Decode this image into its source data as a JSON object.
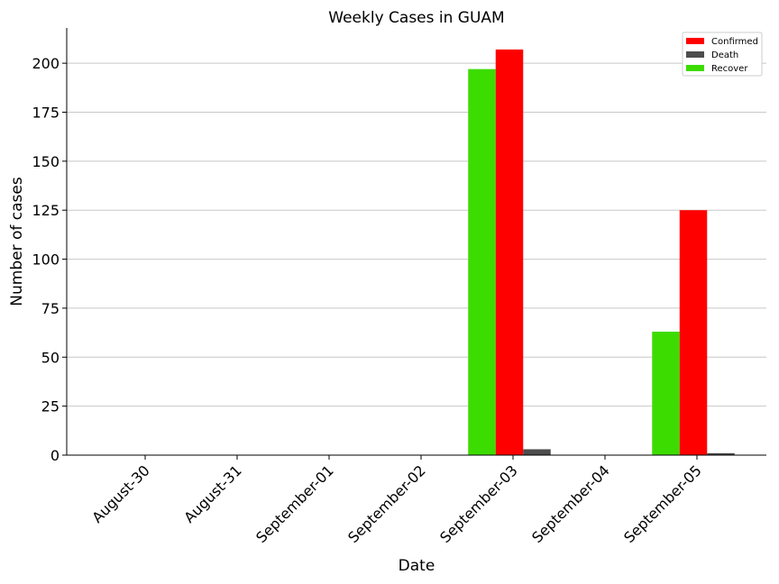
{
  "chart_data": {
    "type": "bar",
    "title": "Weekly Cases in GUAM",
    "xlabel": "Date",
    "ylabel": "Number of cases",
    "categories": [
      "August-30",
      "August-31",
      "September-01",
      "September-02",
      "September-03",
      "September-04",
      "September-05"
    ],
    "series": [
      {
        "name": "Recover",
        "color": "#3ddc00",
        "values": [
          0,
          0,
          0,
          0,
          197,
          0,
          63
        ]
      },
      {
        "name": "Confirmed",
        "color": "#ff0000",
        "values": [
          0,
          0,
          0,
          0,
          207,
          0,
          125
        ]
      },
      {
        "name": "Death",
        "color": "#4d4d4d",
        "values": [
          0,
          0,
          0,
          0,
          3,
          0,
          1
        ]
      }
    ],
    "legend_order": [
      "Confirmed",
      "Death",
      "Recover"
    ],
    "legend_position": "top-right",
    "ylim": [
      0,
      218
    ],
    "yticks": [
      0,
      25,
      50,
      75,
      100,
      125,
      150,
      175,
      200
    ],
    "grid": "horizontal"
  }
}
